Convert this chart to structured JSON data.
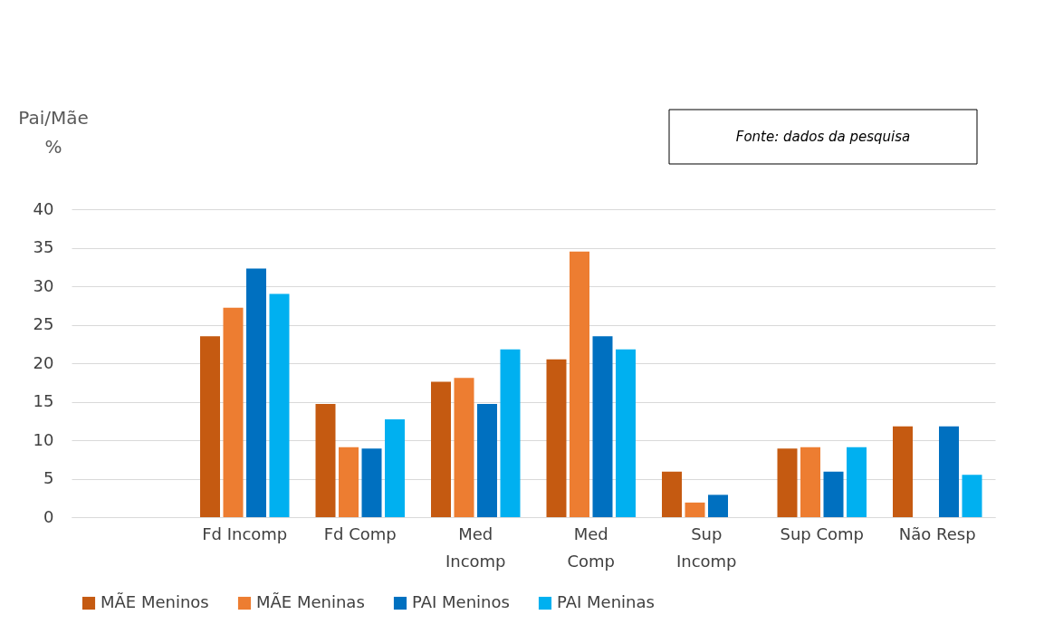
{
  "chart_data": {
    "type": "bar",
    "ylabel": "Pai/Mãe\n%",
    "categories": [
      null,
      "Fd Incomp",
      "Fd Comp",
      "Med\nIncomp",
      "Med\nComp",
      "Sup\nIncomp",
      "Sup Comp",
      "Não Resp"
    ],
    "series": [
      {
        "name": "MÃE Meninos",
        "color": "#c55a11",
        "values": [
          null,
          23.5,
          14.7,
          17.6,
          20.5,
          5.9,
          8.9,
          11.8
        ]
      },
      {
        "name": "MÃE Meninas",
        "color": "#ed7d31",
        "values": [
          null,
          27.2,
          9.1,
          18.1,
          34.5,
          1.9,
          9.1,
          null
        ]
      },
      {
        "name": "PAI Meninos",
        "color": "#0070c0",
        "values": [
          null,
          32.3,
          8.9,
          14.7,
          23.5,
          2.9,
          5.9,
          11.8
        ]
      },
      {
        "name": "PAI Meninas",
        "color": "#00b0f0",
        "values": [
          null,
          29,
          12.7,
          21.8,
          21.8,
          null,
          9.1,
          5.5
        ]
      }
    ],
    "ylim": [
      0,
      40
    ],
    "yticks": [
      0,
      5,
      10,
      15,
      20,
      25,
      30,
      35,
      40
    ],
    "grid": "y",
    "legend": "bottom",
    "annotations": [
      "Fonte: dados da pesquisa"
    ]
  }
}
